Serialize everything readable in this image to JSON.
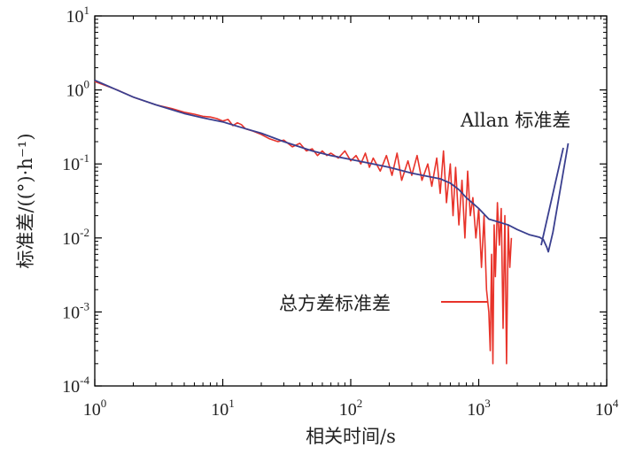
{
  "chart_data": {
    "type": "line",
    "x_scale": "log",
    "y_scale": "log",
    "xlim": [
      1,
      10000
    ],
    "ylim": [
      0.0001,
      10
    ],
    "xlabel": "相关时间/s",
    "ylabel": "标准差/((°)·h⁻¹)",
    "x_ticks": [
      {
        "value": 1,
        "base": "10",
        "exp": "0"
      },
      {
        "value": 10,
        "base": "10",
        "exp": "1"
      },
      {
        "value": 100,
        "base": "10",
        "exp": "2"
      },
      {
        "value": 1000,
        "base": "10",
        "exp": "3"
      },
      {
        "value": 10000,
        "base": "10",
        "exp": "4"
      }
    ],
    "y_ticks": [
      {
        "value": 10,
        "base": "10",
        "exp": "1"
      },
      {
        "value": 1,
        "base": "10",
        "exp": "0"
      },
      {
        "value": 0.1,
        "base": "10",
        "exp": "-1"
      },
      {
        "value": 0.01,
        "base": "10",
        "exp": "-2"
      },
      {
        "value": 0.001,
        "base": "10",
        "exp": "-3"
      },
      {
        "value": 0.0001,
        "base": "10",
        "exp": "-4"
      }
    ],
    "grid": false,
    "series": [
      {
        "name": "总方差标准差",
        "color": "#e8332a",
        "x": [
          1,
          1.5,
          2,
          3,
          4,
          5,
          6,
          7,
          8,
          9,
          10,
          11,
          12,
          13,
          14,
          15,
          17,
          20,
          23,
          27,
          30,
          35,
          40,
          45,
          50,
          55,
          60,
          65,
          70,
          80,
          90,
          100,
          110,
          120,
          130,
          140,
          150,
          170,
          190,
          210,
          230,
          250,
          280,
          300,
          330,
          360,
          400,
          430,
          470,
          500,
          530,
          560,
          600,
          630,
          660,
          700,
          740,
          780,
          820,
          860,
          900,
          950,
          1000,
          1050,
          1100,
          1150,
          1200,
          1230,
          1260,
          1290,
          1320,
          1350,
          1400,
          1450,
          1500,
          1550,
          1600,
          1650,
          1700,
          1750,
          1800
        ],
        "y": [
          1.3,
          1.0,
          0.8,
          0.63,
          0.56,
          0.5,
          0.47,
          0.44,
          0.43,
          0.41,
          0.38,
          0.4,
          0.33,
          0.36,
          0.34,
          0.3,
          0.28,
          0.25,
          0.22,
          0.2,
          0.21,
          0.17,
          0.19,
          0.15,
          0.16,
          0.13,
          0.15,
          0.13,
          0.14,
          0.12,
          0.15,
          0.11,
          0.13,
          0.1,
          0.14,
          0.09,
          0.12,
          0.08,
          0.13,
          0.07,
          0.14,
          0.06,
          0.11,
          0.07,
          0.13,
          0.06,
          0.1,
          0.05,
          0.12,
          0.04,
          0.15,
          0.03,
          0.1,
          0.02,
          0.09,
          0.015,
          0.06,
          0.01,
          0.08,
          0.02,
          0.035,
          0.01,
          0.025,
          0.004,
          0.02,
          0.002,
          0.001,
          0.0003,
          0.006,
          0.0002,
          0.015,
          0.003,
          0.03,
          0.008,
          0.025,
          0.0006,
          0.02,
          0.0002,
          0.015,
          0.004,
          0.01
        ]
      },
      {
        "name": "Allan 标准差",
        "color": "#3a3f8f",
        "x": [
          1,
          2,
          3,
          5,
          7,
          10,
          15,
          20,
          30,
          50,
          70,
          100,
          150,
          200,
          300,
          400,
          500,
          600,
          700,
          800,
          1000,
          1200,
          1500,
          1700,
          2000,
          2500,
          2800,
          3000,
          3200,
          3400,
          3500,
          3800,
          5000
        ],
        "y": [
          1.35,
          0.8,
          0.63,
          0.48,
          0.42,
          0.37,
          0.3,
          0.26,
          0.2,
          0.15,
          0.13,
          0.115,
          0.1,
          0.09,
          0.075,
          0.068,
          0.063,
          0.055,
          0.045,
          0.035,
          0.025,
          0.018,
          0.016,
          0.015,
          0.013,
          0.011,
          0.0105,
          0.0102,
          0.0095,
          0.0075,
          0.0065,
          0.012,
          0.19
        ]
      }
    ],
    "annotations": [
      {
        "text": "Allan 标准差",
        "target_series": "Allan 标准差"
      },
      {
        "text": "总方差标准差",
        "target_series": "总方差标准差"
      }
    ]
  }
}
